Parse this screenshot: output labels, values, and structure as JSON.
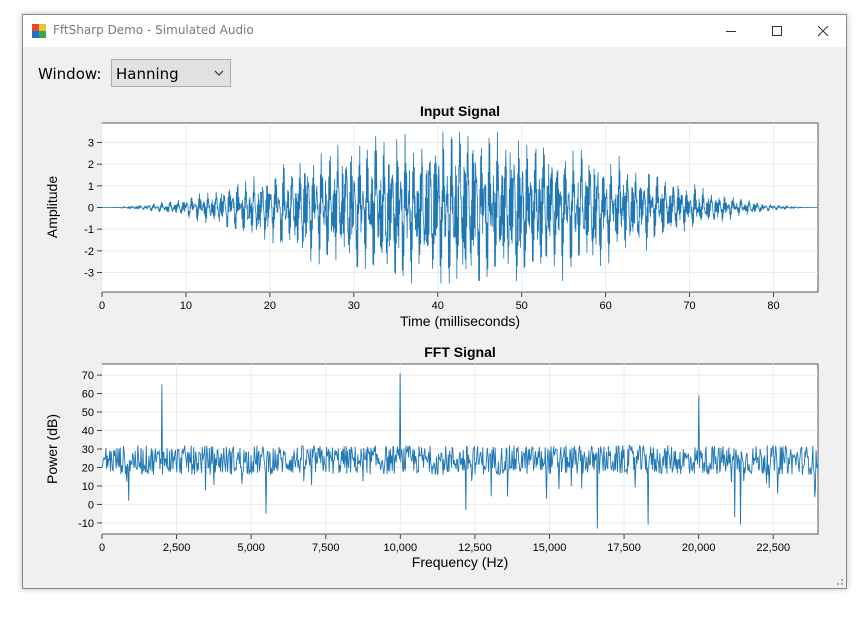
{
  "window": {
    "title": "FftSharp Demo - Simulated Audio"
  },
  "toolbar": {
    "window_label": "Window:",
    "window_select_value": "Hanning"
  },
  "colors": {
    "series": "#1f77b4",
    "plot_bg": "#ffffff",
    "form_bg": "#f0f0f0"
  },
  "chart_data": [
    {
      "type": "line",
      "title": "Input Signal",
      "xlabel": "Time (milliseconds)",
      "ylabel": "Amplitude",
      "xlim": [
        0,
        85.3
      ],
      "ylim": [
        -3.9,
        3.9
      ],
      "xticks": [
        0,
        10,
        20,
        30,
        40,
        50,
        60,
        70,
        80
      ],
      "xtick_labels": [
        "0",
        "10",
        "20",
        "30",
        "40",
        "50",
        "60",
        "70",
        "80"
      ],
      "yticks": [
        3,
        2,
        1,
        0,
        -1,
        -2,
        -3
      ],
      "ytick_labels": [
        "3",
        "2",
        "1",
        "0",
        "-1",
        "-2",
        "-3"
      ],
      "description": "Hanning-windowed simulated audio: tones at 2000, 10000 and 20000 Hz plus noise; envelope peaks near 42.7 ms",
      "series": [
        {
          "name": "signal",
          "tones_hz": [
            2000,
            10000,
            20000
          ],
          "peak_amplitude": 3.5
        }
      ]
    },
    {
      "type": "line",
      "title": "FFT Signal",
      "xlabel": "Frequency (Hz)",
      "ylabel": "Power (dB)",
      "xlim": [
        0,
        24000
      ],
      "ylim": [
        -16,
        76
      ],
      "xticks": [
        0,
        2500,
        5000,
        7500,
        10000,
        12500,
        15000,
        17500,
        20000,
        22500
      ],
      "xtick_labels": [
        "0",
        "2,500",
        "5,000",
        "7,500",
        "10,000",
        "12,500",
        "15,000",
        "17,500",
        "20,000",
        "22,500"
      ],
      "yticks": [
        70,
        60,
        50,
        40,
        30,
        20,
        10,
        0,
        -10
      ],
      "ytick_labels": [
        "70",
        "60",
        "50",
        "40",
        "30",
        "20",
        "10",
        "0",
        "-10"
      ],
      "noise_floor_db": 24,
      "peaks": [
        {
          "freq": 2000,
          "power": 65
        },
        {
          "freq": 10000,
          "power": 71
        },
        {
          "freq": 20000,
          "power": 59
        }
      ],
      "dips": [
        {
          "freq": 900,
          "power": 2
        },
        {
          "freq": 5500,
          "power": -5
        },
        {
          "freq": 12200,
          "power": -3
        },
        {
          "freq": 14900,
          "power": 3
        },
        {
          "freq": 16600,
          "power": -13
        },
        {
          "freq": 18300,
          "power": -11
        },
        {
          "freq": 21200,
          "power": -7
        },
        {
          "freq": 21400,
          "power": -11
        },
        {
          "freq": 23900,
          "power": 4
        }
      ]
    }
  ]
}
